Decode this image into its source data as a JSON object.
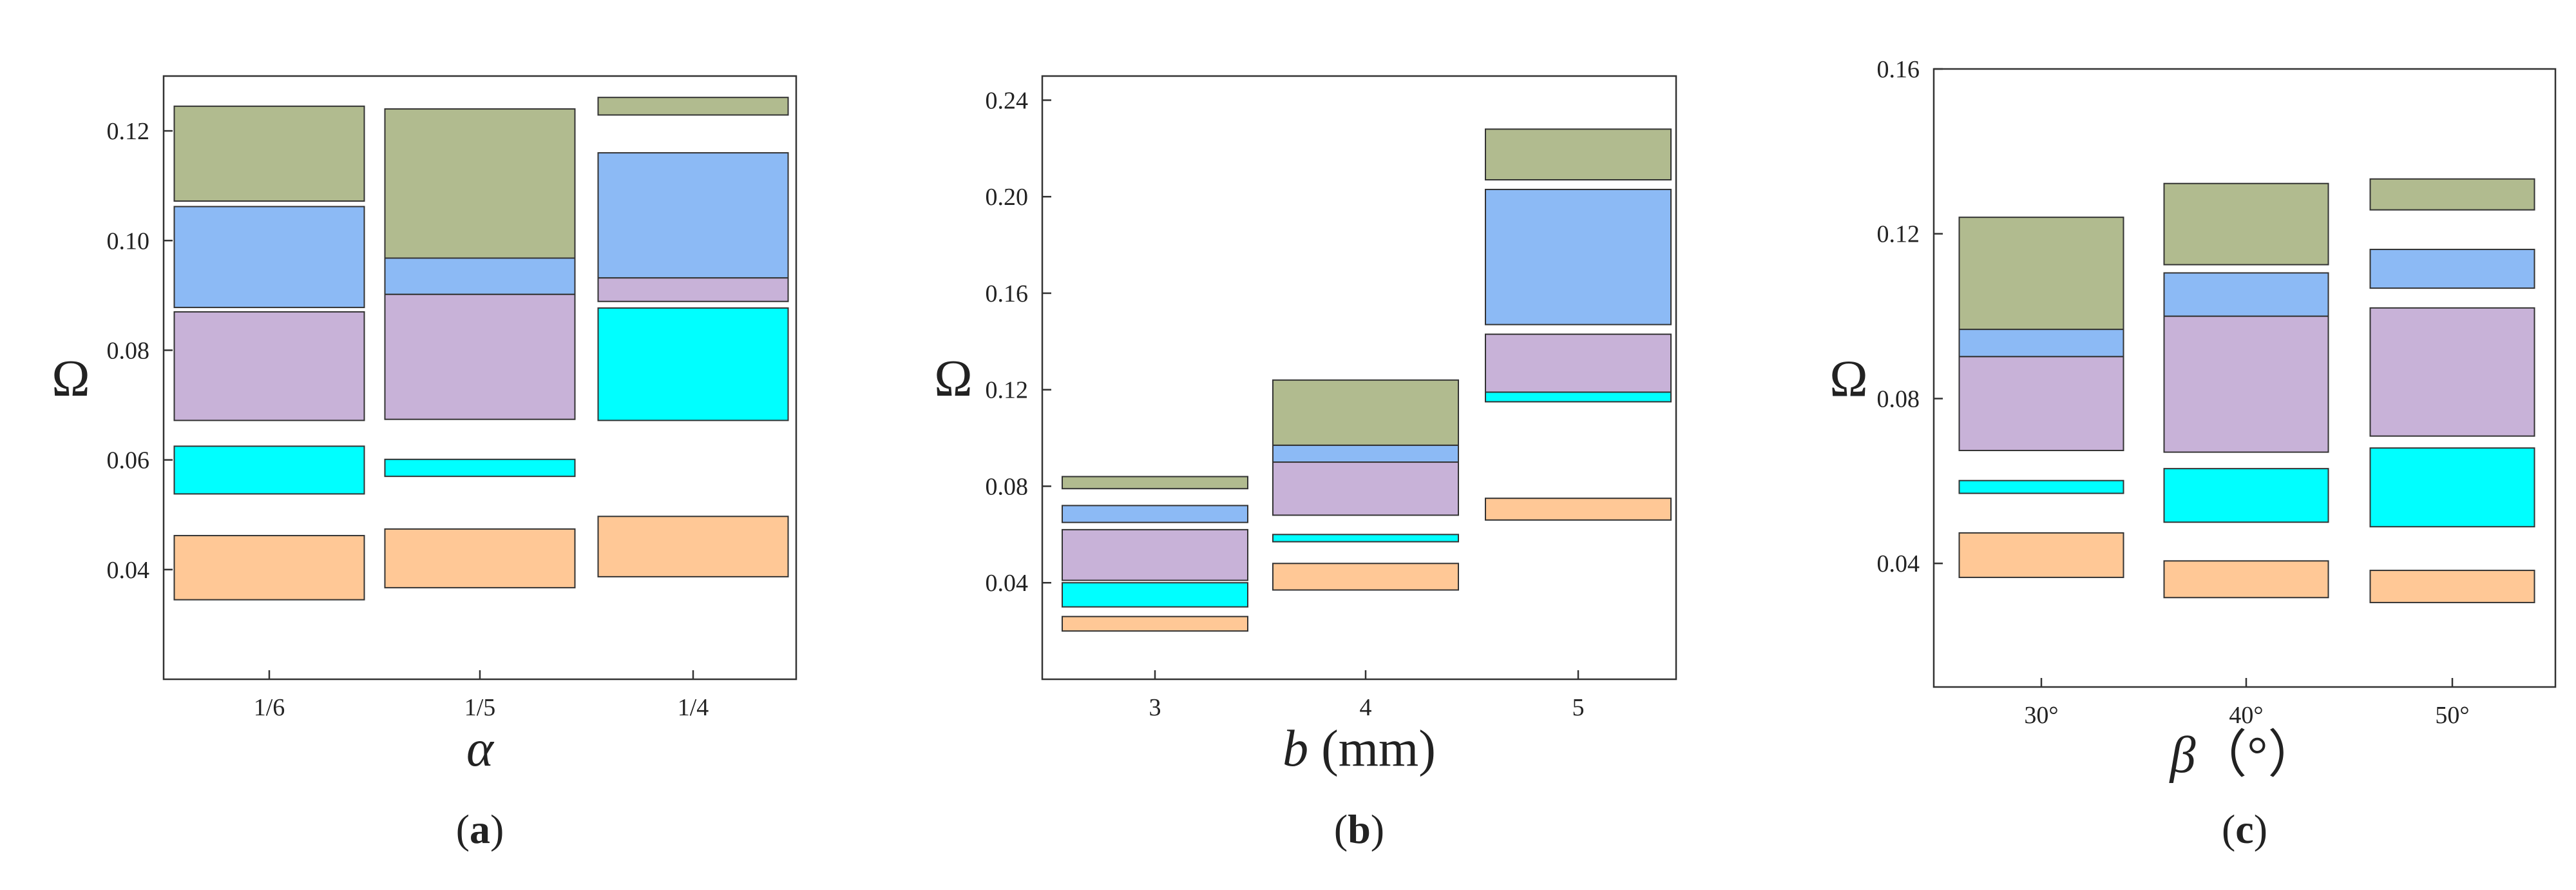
{
  "colors": {
    "olive": "#b1bb8f",
    "blue": "#8cbaf5",
    "purple": "#c8b2d8",
    "cyan": "#00ffff",
    "orange": "#ffc896"
  },
  "chart_data": [
    {
      "type": "bar",
      "panel_label": "(a)",
      "panel_letter": "a",
      "xlabel": "α",
      "xlabel_unit": "",
      "ylabel": "Ω",
      "categories": [
        "1/6",
        "1/5",
        "1/4"
      ],
      "yticks": [
        0.04,
        0.06,
        0.08,
        0.1,
        0.12
      ],
      "ytick_labels": [
        "0.04",
        "0.06",
        "0.08",
        "0.10",
        "0.12"
      ],
      "ylim": [
        0.02,
        0.13
      ],
      "grid": false,
      "bars": [
        [
          {
            "color": "orange",
            "low": 0.0345,
            "high": 0.0462
          },
          {
            "color": "cyan",
            "low": 0.0538,
            "high": 0.0625
          },
          {
            "color": "purple",
            "low": 0.0672,
            "high": 0.087
          },
          {
            "color": "blue",
            "low": 0.0878,
            "high": 0.1062
          },
          {
            "color": "olive",
            "low": 0.1072,
            "high": 0.1245
          }
        ],
        [
          {
            "color": "orange",
            "low": 0.0367,
            "high": 0.0474
          },
          {
            "color": "cyan",
            "low": 0.057,
            "high": 0.0601
          },
          {
            "color": "purple",
            "low": 0.0674,
            "high": 0.0902
          },
          {
            "color": "blue",
            "low": 0.0902,
            "high": 0.0968
          },
          {
            "color": "olive",
            "low": 0.0968,
            "high": 0.124
          }
        ],
        [
          {
            "color": "orange",
            "low": 0.0387,
            "high": 0.0497
          },
          {
            "color": "cyan",
            "low": 0.0672,
            "high": 0.0877
          },
          {
            "color": "purple",
            "low": 0.0889,
            "high": 0.0932
          },
          {
            "color": "blue",
            "low": 0.0932,
            "high": 0.116
          },
          {
            "color": "olive",
            "low": 0.1229,
            "high": 0.1261
          }
        ]
      ]
    },
    {
      "type": "bar",
      "panel_label": "(b)",
      "panel_letter": "b",
      "xlabel": "b",
      "xlabel_unit": " (mm)",
      "ylabel": "Ω",
      "categories": [
        "3",
        "4",
        "5"
      ],
      "yticks": [
        0.04,
        0.08,
        0.12,
        0.16,
        0.2,
        0.24
      ],
      "ytick_labels": [
        "0.04",
        "0.08",
        "0.12",
        "0.16",
        "0.20",
        "0.24"
      ],
      "ylim": [
        0.0,
        0.25
      ],
      "grid": false,
      "bars": [
        [
          {
            "color": "orange",
            "low": 0.02,
            "high": 0.026
          },
          {
            "color": "cyan",
            "low": 0.03,
            "high": 0.04
          },
          {
            "color": "purple",
            "low": 0.041,
            "high": 0.062
          },
          {
            "color": "blue",
            "low": 0.065,
            "high": 0.072
          },
          {
            "color": "olive",
            "low": 0.079,
            "high": 0.084
          }
        ],
        [
          {
            "color": "orange",
            "low": 0.037,
            "high": 0.048
          },
          {
            "color": "cyan",
            "low": 0.057,
            "high": 0.06
          },
          {
            "color": "purple",
            "low": 0.068,
            "high": 0.09
          },
          {
            "color": "blue",
            "low": 0.09,
            "high": 0.097
          },
          {
            "color": "olive",
            "low": 0.097,
            "high": 0.124
          }
        ],
        [
          {
            "color": "orange",
            "low": 0.066,
            "high": 0.075
          },
          {
            "color": "cyan",
            "low": 0.115,
            "high": 0.119
          },
          {
            "color": "purple",
            "low": 0.119,
            "high": 0.143
          },
          {
            "color": "blue",
            "low": 0.147,
            "high": 0.203
          },
          {
            "color": "olive",
            "low": 0.207,
            "high": 0.228
          }
        ]
      ]
    },
    {
      "type": "bar",
      "panel_label": "(c)",
      "panel_letter": "c",
      "xlabel": "β",
      "xlabel_unit": "（°）",
      "ylabel": "Ω",
      "categories": [
        "30°",
        "40°",
        "50°"
      ],
      "yticks": [
        0.04,
        0.08,
        0.12,
        0.16
      ],
      "ytick_labels": [
        "0.04",
        "0.08",
        "0.12",
        "0.16"
      ],
      "ylim": [
        0.01,
        0.16
      ],
      "grid": false,
      "bars": [
        [
          {
            "color": "orange",
            "low": 0.0366,
            "high": 0.0474
          },
          {
            "color": "cyan",
            "low": 0.057,
            "high": 0.0601
          },
          {
            "color": "purple",
            "low": 0.0674,
            "high": 0.0902
          },
          {
            "color": "blue",
            "low": 0.0902,
            "high": 0.0968
          },
          {
            "color": "olive",
            "low": 0.0968,
            "high": 0.124
          }
        ],
        [
          {
            "color": "orange",
            "low": 0.0317,
            "high": 0.0406
          },
          {
            "color": "cyan",
            "low": 0.05,
            "high": 0.063
          },
          {
            "color": "purple",
            "low": 0.067,
            "high": 0.1
          },
          {
            "color": "blue",
            "low": 0.1,
            "high": 0.1105
          },
          {
            "color": "olive",
            "low": 0.1125,
            "high": 0.1322
          }
        ],
        [
          {
            "color": "orange",
            "low": 0.0305,
            "high": 0.0383
          },
          {
            "color": "cyan",
            "low": 0.0489,
            "high": 0.068
          },
          {
            "color": "purple",
            "low": 0.0709,
            "high": 0.102
          },
          {
            "color": "blue",
            "low": 0.1068,
            "high": 0.1162
          },
          {
            "color": "olive",
            "low": 0.1258,
            "high": 0.1333
          }
        ]
      ]
    }
  ]
}
